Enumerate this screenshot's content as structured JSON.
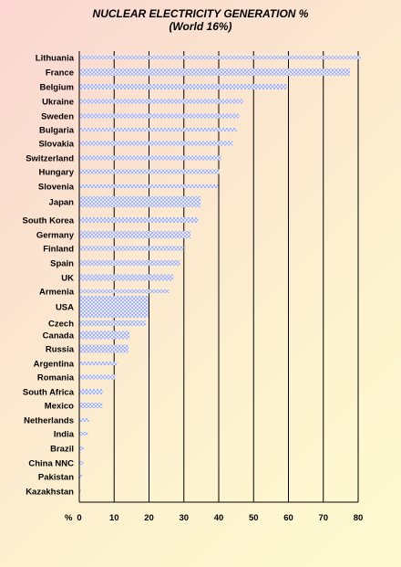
{
  "chart_data": {
    "type": "bar",
    "orientation": "horizontal",
    "title": "NUCLEAR ELECTRICITY GENERATION %",
    "subtitle": "(World 16%)",
    "xlabel": "%",
    "xlim": [
      0,
      80
    ],
    "xticks": [
      "0",
      "10",
      "20",
      "30",
      "40",
      "50",
      "60",
      "70",
      "80"
    ],
    "grid": "vertical",
    "bar_color": "#b8c0f0",
    "categories": [
      "Lithuania",
      "France",
      "Belgium",
      "Ukraine",
      "Sweden",
      "Bulgaria",
      "Slovakia",
      "Switzerland",
      "Hungary",
      "Slovenia",
      "Japan",
      "South Korea",
      "Germany",
      "Finland",
      "Spain",
      "UK",
      "Armenia",
      "USA",
      "Czech",
      "Canada",
      "Russia",
      "Argentina",
      "Romania",
      "South Africa",
      "Mexico",
      "Netherlands",
      "India",
      "Brazil",
      "China NNC",
      "Pakistan",
      "Kazakhstan"
    ],
    "values": [
      80.6,
      77.5,
      59.4,
      46.9,
      45.8,
      45.0,
      43.9,
      40.6,
      40.0,
      39.7,
      34.7,
      34.0,
      31.8,
      29.8,
      28.8,
      26.9,
      25.6,
      19.7,
      19.0,
      14.3,
      14.0,
      10.7,
      10.2,
      6.6,
      6.5,
      2.6,
      2.3,
      1.1,
      1.0,
      0.6,
      0.3
    ]
  }
}
